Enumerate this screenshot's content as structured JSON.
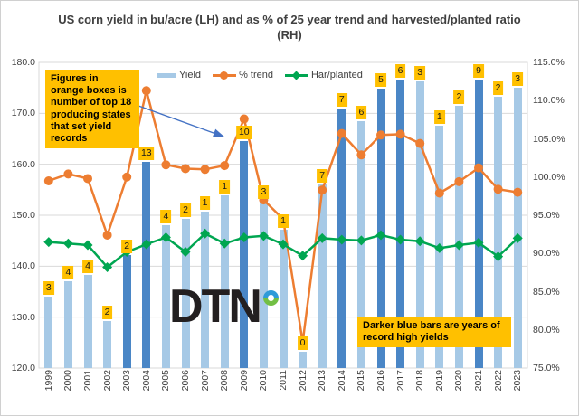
{
  "title": "US corn yield in bu/acre (LH) and as % of 25 year trend and harvested/planted ratio (RH)",
  "legend": {
    "yield_label": "Yield",
    "pct_trend_label": "% trend",
    "har_planted_label": "Har/planted"
  },
  "annotations": {
    "left_note": "Figures in orange boxes is number of top 18 producing states that set yield records",
    "right_note": "Darker blue bars are years of record high yields"
  },
  "logo": {
    "text": "DTN"
  },
  "colors": {
    "bar_light_blue": "#A6C9E6",
    "bar_dark_blue": "#4A86C6",
    "pct_trend_orange": "#ED7D31",
    "har_planted_green": "#00A651",
    "label_box_orange": "#FFC000",
    "axis_text": "#404040",
    "gridline": "#D9D9D9",
    "arrow_blue": "#4472C4"
  },
  "chart_data": {
    "type": "combo",
    "grid": true,
    "legend_position": "top",
    "categories": [
      "1999",
      "2000",
      "2001",
      "2002",
      "2003",
      "2004",
      "2005",
      "2006",
      "2007",
      "2008",
      "2009",
      "2010",
      "2011",
      "2012",
      "2013",
      "2014",
      "2015",
      "2016",
      "2017",
      "2018",
      "2019",
      "2020",
      "2021",
      "2022",
      "2023"
    ],
    "axes": {
      "left": {
        "min": 120,
        "max": 180,
        "step": 10,
        "ticks": [
          "180.0",
          "170.0",
          "160.0",
          "150.0",
          "140.0",
          "130.0",
          "120.0"
        ]
      },
      "right": {
        "min": 75,
        "max": 115,
        "step": 5,
        "ticks": [
          "115.0%",
          "110.0%",
          "105.0%",
          "100.0%",
          "95.0%",
          "90.0%",
          "85.0%",
          "80.0%",
          "75.0%"
        ]
      }
    },
    "series": [
      {
        "name": "Yield",
        "type": "bar",
        "axis": "left",
        "values": [
          134.0,
          137.0,
          138.2,
          129.3,
          142.2,
          160.5,
          148.0,
          149.3,
          150.7,
          153.9,
          164.5,
          152.8,
          147.2,
          123.2,
          156.0,
          171.0,
          168.5,
          174.8,
          176.6,
          176.3,
          167.5,
          171.4,
          176.7,
          173.3,
          175.0
        ],
        "record_high_flags": [
          false,
          false,
          false,
          false,
          true,
          true,
          false,
          false,
          false,
          false,
          true,
          false,
          false,
          false,
          false,
          true,
          false,
          true,
          true,
          false,
          false,
          false,
          true,
          false,
          false
        ],
        "record_states_labels": [
          "3",
          "4",
          "4",
          "2",
          "2",
          "13",
          "4",
          "2",
          "1",
          "1",
          "10",
          "3",
          "1",
          "0",
          "7",
          "7",
          "6",
          "5",
          "6",
          "3",
          "1",
          "2",
          "9",
          "2",
          "3"
        ]
      },
      {
        "name": "% trend",
        "type": "line",
        "axis": "right",
        "marker": "circle",
        "values": [
          99.5,
          100.4,
          99.8,
          92.4,
          100.0,
          111.3,
          101.6,
          101.1,
          101.0,
          101.5,
          107.6,
          97.0,
          94.5,
          78.4,
          98.3,
          105.7,
          102.9,
          105.5,
          105.6,
          104.4,
          97.9,
          99.4,
          101.2,
          98.4,
          98.0
        ]
      },
      {
        "name": "Har/planted",
        "type": "line",
        "axis": "right",
        "marker": "diamond",
        "values": [
          91.5,
          91.3,
          91.1,
          88.2,
          90.2,
          91.2,
          92.1,
          90.2,
          92.6,
          91.3,
          92.1,
          92.3,
          91.2,
          89.7,
          92.0,
          91.8,
          91.7,
          92.4,
          91.8,
          91.6,
          90.7,
          91.1,
          91.4,
          89.6,
          92.0
        ]
      }
    ]
  }
}
